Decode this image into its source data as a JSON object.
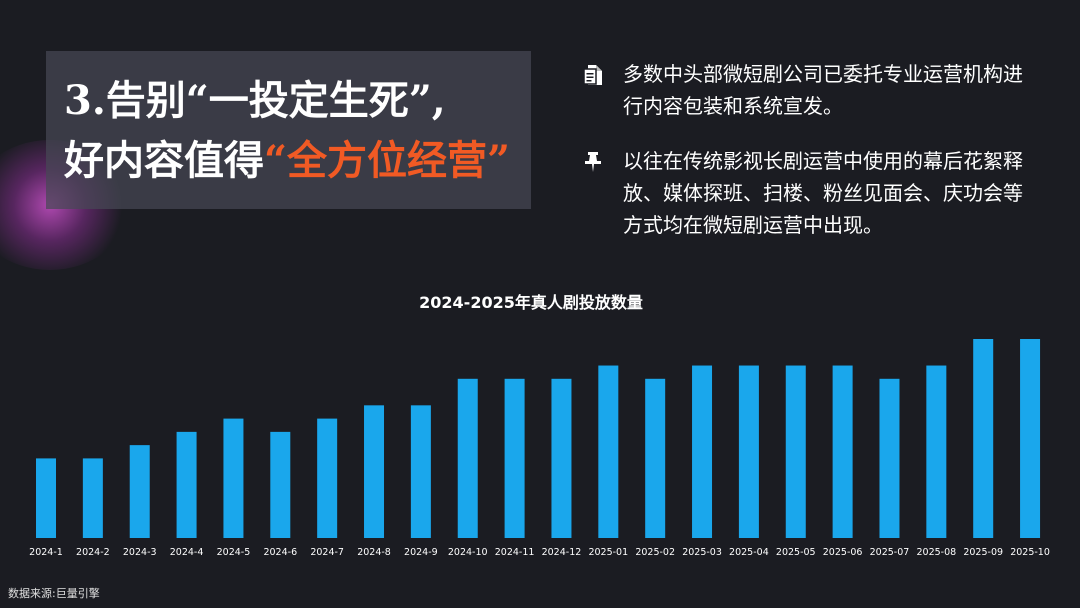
{
  "slide": {
    "title_line1": "3.告别“一投定生死”,",
    "title_line2_prefix": "好内容值得",
    "title_line2_accent": "“全方位经营”",
    "accent_color": "#f15a24",
    "bullets": [
      {
        "icon": "document-icon",
        "text": "多数中头部微短剧公司已委托专业运营机构进行内容包装和系统宣发。"
      },
      {
        "icon": "pushpin-icon",
        "text": "以往在传统影视长剧运营中使用的幕后花絮释放、媒体探班、扫楼、粉丝见面会、庆功会等方式均在微短剧运营中出现。"
      }
    ],
    "source": "数据来源:巨量引擎"
  },
  "chart_data": {
    "type": "bar",
    "title": "2024-2025年真人剧投放数量",
    "categories": [
      "2024-1",
      "2024-2",
      "2024-3",
      "2024-4",
      "2024-5",
      "2024-6",
      "2024-7",
      "2024-8",
      "2024-9",
      "2024-10",
      "2024-11",
      "2024-12",
      "2025-01",
      "2025-02",
      "2025-03",
      "2025-04",
      "2025-05",
      "2025-06",
      "2025-07",
      "2025-08",
      "2025-09",
      "2025-10"
    ],
    "values": [
      6,
      6,
      7,
      8,
      9,
      8,
      9,
      10,
      10,
      12,
      12,
      12,
      13,
      12,
      13,
      13,
      13,
      13,
      12,
      13,
      15,
      15
    ],
    "bar_color": "#1aa7ec",
    "xlabel": "",
    "ylabel": "",
    "ylim": [
      0,
      15
    ],
    "grid": false,
    "legend": "none"
  }
}
